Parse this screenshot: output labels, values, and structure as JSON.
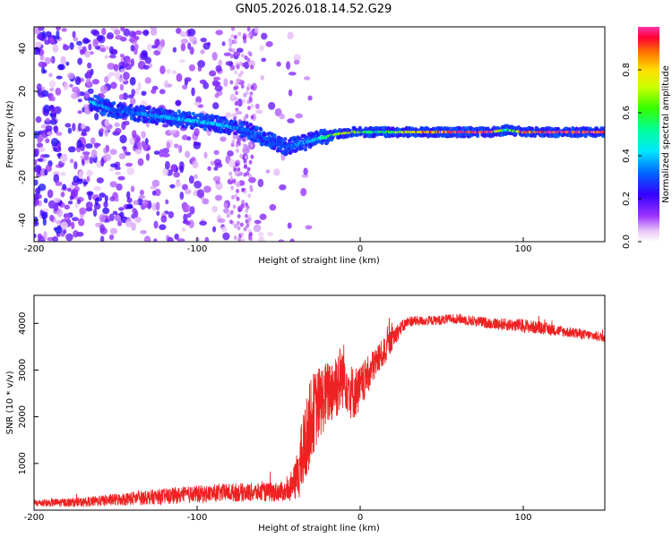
{
  "title": "GN05.2026.018.14.52.G29",
  "chart_data": [
    {
      "type": "heatmap",
      "panel": "top",
      "xlabel": "Height of straight line (km)",
      "ylabel": "Frequency (Hz)",
      "xlim": [
        -200,
        150
      ],
      "ylim": [
        -50,
        50
      ],
      "xticks": [
        -200,
        -100,
        0,
        100
      ],
      "yticks": [
        -40,
        -20,
        0,
        20,
        40
      ],
      "colorbar": {
        "label": "Normalized spectral amplitude",
        "range": [
          0.0,
          1.0
        ],
        "ticks": [
          0.0,
          0.2,
          0.4,
          0.6,
          0.8
        ],
        "tick_labels": [
          "0.0",
          "0.2",
          "0.4",
          "0.6",
          "0.8"
        ]
      },
      "ridge": {
        "x": [
          -165,
          -150,
          -130,
          -110,
          -90,
          -70,
          -55,
          -45,
          -35,
          -25,
          -15,
          -5,
          5,
          20,
          40,
          60,
          80,
          90,
          100,
          120,
          150
        ],
        "frequency": [
          15,
          11,
          9,
          7,
          5,
          2,
          -3,
          -6,
          -4,
          -2,
          0,
          1,
          1,
          1,
          1,
          1,
          1,
          2,
          1,
          1,
          1
        ],
        "amplitude": [
          0.45,
          0.3,
          0.35,
          0.4,
          0.4,
          0.3,
          0.3,
          0.3,
          0.35,
          0.45,
          0.7,
          0.75,
          0.55,
          0.6,
          0.85,
          0.9,
          0.95,
          0.5,
          0.9,
          0.95,
          0.95
        ]
      }
    },
    {
      "type": "line",
      "panel": "bottom",
      "xlabel": "Height of straight line (km)",
      "ylabel": "SNR (10 * v/v)",
      "xlim": [
        -200,
        150
      ],
      "ylim": [
        0,
        4600
      ],
      "xticks": [
        -200,
        -100,
        0,
        100
      ],
      "yticks": [
        1000,
        2000,
        3000,
        4000
      ],
      "color": "#ee2222",
      "envelope": {
        "x": [
          -200,
          -170,
          -140,
          -110,
          -80,
          -60,
          -45,
          -40,
          -35,
          -30,
          -25,
          -20,
          -15,
          -10,
          -5,
          0,
          5,
          10,
          15,
          20,
          25,
          30,
          40,
          60,
          80,
          100,
          120,
          150
        ],
        "mean": [
          150,
          170,
          250,
          320,
          380,
          380,
          400,
          600,
          1200,
          2000,
          2300,
          2500,
          2700,
          2900,
          2500,
          2600,
          2900,
          3200,
          3400,
          3700,
          3900,
          4050,
          4050,
          4100,
          4000,
          3950,
          3850,
          3700
        ],
        "noise": [
          80,
          100,
          150,
          180,
          200,
          200,
          220,
          400,
          900,
          900,
          800,
          700,
          800,
          700,
          600,
          500,
          400,
          350,
          300,
          250,
          150,
          120,
          100,
          110,
          120,
          150,
          120,
          100
        ]
      }
    }
  ]
}
